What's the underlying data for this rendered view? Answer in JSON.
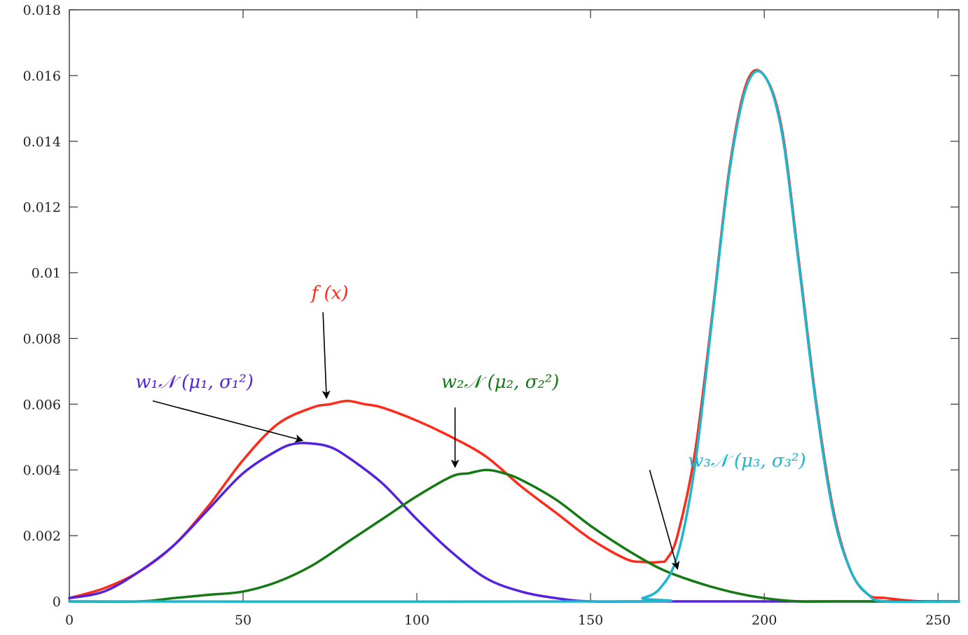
{
  "chart_data": {
    "type": "line",
    "title": "",
    "xlabel": "",
    "ylabel": "",
    "xlim": [
      0,
      256
    ],
    "ylim": [
      0,
      0.018
    ],
    "x_ticks": [
      0,
      50,
      100,
      150,
      200,
      250
    ],
    "x_tick_labels": [
      "0",
      "50",
      "100",
      "150",
      "200",
      "250"
    ],
    "y_ticks": [
      0,
      0.002,
      0.004,
      0.006,
      0.008,
      0.01,
      0.012,
      0.014,
      0.016,
      0.018
    ],
    "y_tick_labels": [
      "0",
      "0.002",
      "0.004",
      "0.006",
      "0.008",
      "0.01",
      "0.012",
      "0.014",
      "0.016",
      "0.018"
    ],
    "grid": false,
    "series": [
      {
        "color": "#ff2a1a",
        "x": [
          0,
          10,
          20,
          30,
          40,
          50,
          60,
          70,
          75,
          80,
          85,
          90,
          100,
          110,
          120,
          130,
          140,
          150,
          160,
          165,
          170,
          172,
          175,
          180,
          185,
          190,
          195,
          200,
          205,
          210,
          215,
          220,
          225,
          230,
          235,
          245,
          256
        ],
        "y": [
          0.0001,
          0.0004,
          0.0009,
          0.0017,
          0.0029,
          0.0043,
          0.0054,
          0.0059,
          0.006,
          0.0061,
          0.006,
          0.0059,
          0.0055,
          0.005,
          0.0044,
          0.0035,
          0.0027,
          0.0019,
          0.0013,
          0.0012,
          0.0012,
          0.0013,
          0.002,
          0.0045,
          0.0087,
          0.0132,
          0.0158,
          0.016,
          0.0144,
          0.0103,
          0.006,
          0.0027,
          0.0009,
          0.0002,
          0.0001,
          0.0,
          0.0
        ]
      },
      {
        "color": "#5522dd",
        "x": [
          0,
          10,
          20,
          30,
          40,
          50,
          60,
          65,
          70,
          75,
          80,
          90,
          100,
          110,
          120,
          130,
          140,
          150,
          170,
          256
        ],
        "y": [
          0.0001,
          0.0003,
          0.0009,
          0.0017,
          0.0028,
          0.0039,
          0.0046,
          0.0048,
          0.0048,
          0.0047,
          0.0044,
          0.0036,
          0.0025,
          0.0015,
          0.0007,
          0.0003,
          0.0001,
          0.0,
          0.0,
          0.0
        ]
      },
      {
        "color": "#157a15",
        "x": [
          0,
          20,
          30,
          40,
          50,
          60,
          70,
          80,
          90,
          100,
          110,
          115,
          120,
          125,
          130,
          140,
          150,
          160,
          170,
          180,
          190,
          200,
          210,
          220,
          256
        ],
        "y": [
          0.0,
          0.0,
          0.0001,
          0.0002,
          0.0003,
          0.0006,
          0.0011,
          0.0018,
          0.0025,
          0.0032,
          0.0038,
          0.0039,
          0.004,
          0.0039,
          0.0037,
          0.0031,
          0.0023,
          0.0016,
          0.001,
          0.0006,
          0.0003,
          0.0001,
          0.0,
          0.0,
          0.0
        ]
      },
      {
        "color": "#1fb5cc",
        "x": [
          0,
          160,
          165,
          170,
          175,
          180,
          185,
          190,
          195,
          200,
          205,
          210,
          215,
          220,
          225,
          230,
          235,
          256
        ],
        "y": [
          0.0,
          0.0,
          0.0001,
          0.0004,
          0.0014,
          0.0041,
          0.0086,
          0.0131,
          0.0157,
          0.016,
          0.0143,
          0.0102,
          0.0059,
          0.0026,
          0.0009,
          0.0002,
          0.0,
          0.0
        ]
      }
    ],
    "annotations": [
      {
        "text": "f (x)",
        "color": "#ff2a1a",
        "text_at": [
          75,
          0.0092
        ],
        "arrow_from": [
          73,
          0.0088
        ],
        "arrow_to": [
          74,
          0.0062
        ]
      },
      {
        "text": "w₁𝒩 (μ₁, σ₁²)",
        "color": "#5522dd",
        "text_at": [
          36,
          0.0065
        ],
        "arrow_from": [
          24,
          0.0061
        ],
        "arrow_to": [
          67,
          0.0049
        ]
      },
      {
        "text": "w₂𝒩 (μ₂, σ₂²)",
        "color": "#157a15",
        "text_at": [
          124,
          0.0065
        ],
        "arrow_from": [
          111,
          0.0059
        ],
        "arrow_to": [
          111,
          0.0041
        ]
      },
      {
        "text": "w₃𝒩 (μ₃, σ₃²)",
        "color": "#1fb5cc",
        "text_at": [
          195,
          0.0041
        ],
        "arrow_from": [
          167,
          0.004
        ],
        "arrow_to": [
          175,
          0.001
        ]
      }
    ]
  }
}
